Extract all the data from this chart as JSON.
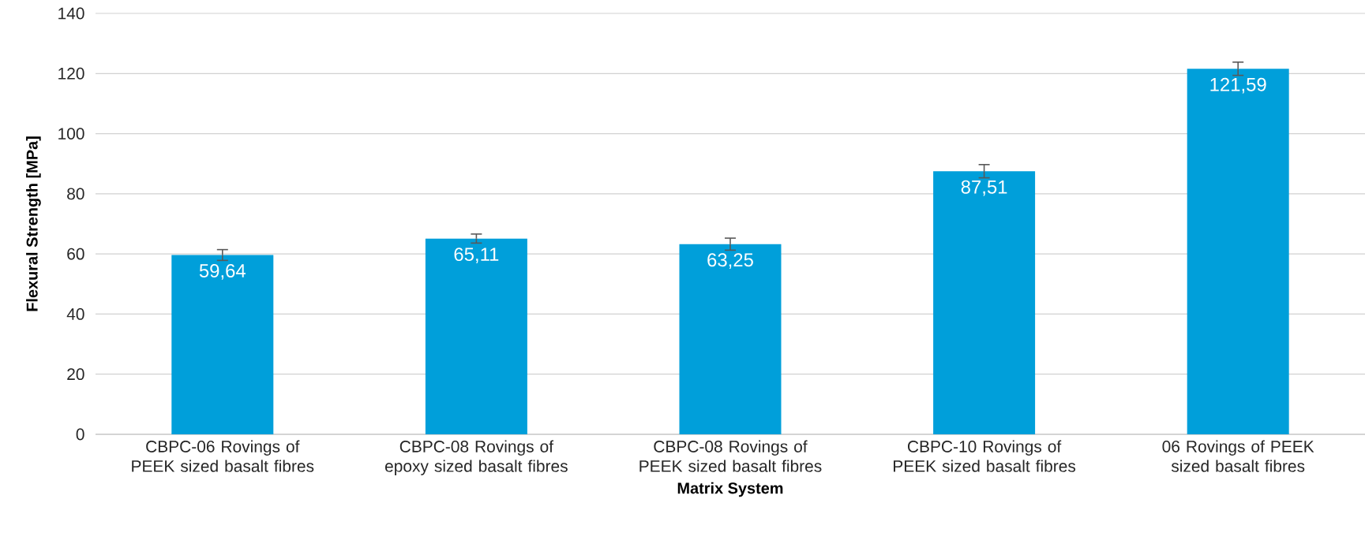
{
  "chart_data": {
    "type": "bar",
    "xlabel": "Matrix System",
    "ylabel": "Flexural Strength [MPa]",
    "categories": [
      "CBPC-06 Rovings of PEEK sized basalt fibres",
      "CBPC-08 Rovings of epoxy sized basalt fibres",
      "CBPC-08 Rovings of PEEK sized basalt fibres",
      "CBPC-10 Rovings of PEEK sized basalt fibres",
      "06 Rovings of PEEK sized basalt fibres"
    ],
    "values": [
      59.64,
      65.11,
      63.25,
      87.51,
      121.59
    ],
    "errors": [
      1.8,
      1.5,
      2,
      2.2,
      2.2
    ],
    "value_labels": [
      "59,64",
      "65,11",
      "63,25",
      "87,51",
      "121,59"
    ],
    "color": "#009fda",
    "ylim": [
      0,
      140
    ],
    "yticks": [
      0,
      20,
      40,
      60,
      80,
      100,
      120,
      140
    ],
    "grid": "y"
  }
}
